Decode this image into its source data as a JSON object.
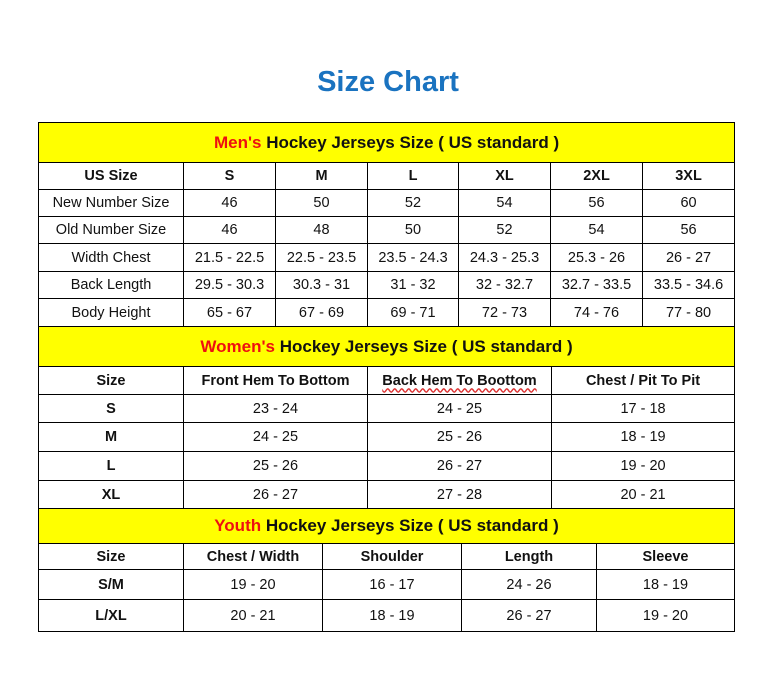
{
  "title": "Size Chart",
  "colors": {
    "title": "#1a73c0",
    "header_bg": "#ffff00",
    "highlight": "#ee1010"
  },
  "sections": [
    {
      "id": "men",
      "highlight": "Men's",
      "heading": " Hockey Jerseys Size ( US standard )",
      "columns": [
        "US Size",
        "S",
        "M",
        "L",
        "XL",
        "2XL",
        "3XL"
      ],
      "rows": [
        [
          "New Number Size",
          "46",
          "50",
          "52",
          "54",
          "56",
          "60"
        ],
        [
          "Old Number Size",
          "46",
          "48",
          "50",
          "52",
          "54",
          "56"
        ],
        [
          "Width Chest",
          "21.5 - 22.5",
          "22.5 - 23.5",
          "23.5 - 24.3",
          "24.3 - 25.3",
          "25.3 - 26",
          "26 - 27"
        ],
        [
          "Back Length",
          "29.5 - 30.3",
          "30.3 - 31",
          "31 - 32",
          "32 - 32.7",
          "32.7 - 33.5",
          "33.5 - 34.6"
        ],
        [
          "Body Height",
          "65 - 67",
          "67 - 69",
          "69 - 71",
          "72 - 73",
          "74 - 76",
          "77 - 80"
        ]
      ]
    },
    {
      "id": "women",
      "highlight": "Women's",
      "heading": " Hockey Jerseys Size ( US standard )",
      "columns": [
        "Size",
        "Front Hem To Bottom",
        "Back Hem To Boottom",
        "Chest / Pit To Pit"
      ],
      "rows": [
        [
          "S",
          "23 - 24",
          "24 - 25",
          "17 - 18"
        ],
        [
          "M",
          "24 - 25",
          "25 - 26",
          "18 - 19"
        ],
        [
          "L",
          "25 - 26",
          "26 - 27",
          "19 - 20"
        ],
        [
          "XL",
          "26 - 27",
          "27 - 28",
          "20 - 21"
        ]
      ]
    },
    {
      "id": "youth",
      "highlight": "Youth",
      "heading": " Hockey Jerseys Size ( US standard )",
      "columns": [
        "Size",
        "Chest / Width",
        "Shoulder",
        "Length",
        "Sleeve"
      ],
      "rows": [
        [
          "S/M",
          "19 - 20",
          "16 - 17",
          "24 - 26",
          "18 - 19"
        ],
        [
          "L/XL",
          "20 - 21",
          "18 - 19",
          "26 - 27",
          "19 - 20"
        ]
      ]
    }
  ]
}
